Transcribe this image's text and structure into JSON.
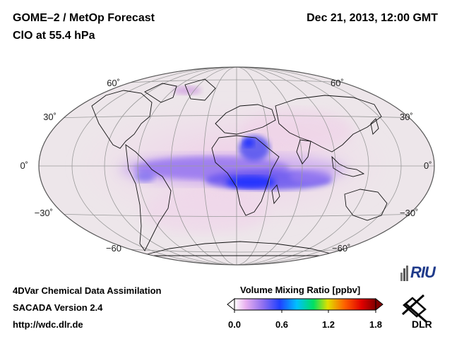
{
  "header": {
    "title": "GOME–2 / MetOp Forecast",
    "subtitle": "ClO at 55.4 hPa",
    "datetime": "Dec 21, 2013, 12:00 GMT"
  },
  "map": {
    "projection": "Hammer/Mollweide global",
    "lat_labels_left": [
      "60˚",
      "30˚",
      "0˚",
      "−30˚",
      "−60"
    ],
    "lat_labels_right": [
      "60˚",
      "30˚",
      "0˚",
      "−30˚",
      "−60˚"
    ],
    "background_color": "#ede6ea",
    "max_color": "#2020e0"
  },
  "footer": {
    "line1": "4DVar Chemical Data Assimilation",
    "line2": "SACADA Version 2.4",
    "line3": "http://wdc.dlr.de"
  },
  "colorbar": {
    "title": "Volume Mixing Ratio [ppbv]",
    "ticks": [
      "0.0",
      "0.6",
      "1.2",
      "1.8"
    ],
    "range": [
      0.0,
      1.8
    ],
    "colors": [
      "#ffffff",
      "#e0a0f0",
      "#8060f0",
      "#2040ff",
      "#00c0ff",
      "#00e060",
      "#e0e000",
      "#ff6000",
      "#e00000",
      "#800000"
    ]
  },
  "logos": {
    "riu": "RIU",
    "dlr": "DLR"
  }
}
